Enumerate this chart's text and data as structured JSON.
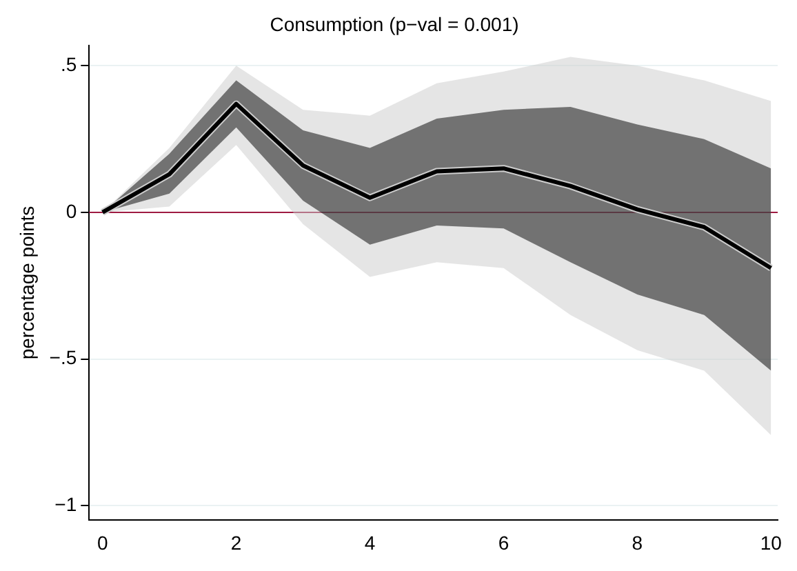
{
  "chart_data": {
    "type": "line",
    "title": "Consumption (p−val = 0.001)",
    "ylabel": "percentage points",
    "x": [
      0,
      1,
      2,
      3,
      4,
      5,
      6,
      7,
      8,
      9,
      10
    ],
    "series": [
      {
        "color": "#cccccc",
        "values": [
          0,
          0.13,
          0.37,
          0.16,
          0.05,
          0.14,
          0.15,
          0.09,
          0.01,
          -0.05,
          -0.19
        ],
        "lower": [
          0,
          0.02,
          0.23,
          -0.04,
          -0.22,
          -0.17,
          -0.19,
          -0.35,
          -0.47,
          -0.54,
          -0.76
        ],
        "upper": [
          0,
          0.22,
          0.5,
          0.35,
          0.33,
          0.44,
          0.48,
          0.53,
          0.5,
          0.45,
          0.38
        ]
      },
      {
        "color": "#000000",
        "values": [
          0,
          0.13,
          0.37,
          0.16,
          0.05,
          0.14,
          0.15,
          0.09,
          0.01,
          -0.05,
          -0.19
        ],
        "lower": [
          0,
          0.064,
          0.29,
          0.04,
          -0.11,
          -0.045,
          -0.055,
          -0.17,
          -0.28,
          -0.35,
          -0.54
        ],
        "upper": [
          0,
          0.2,
          0.45,
          0.28,
          0.22,
          0.32,
          0.35,
          0.36,
          0.3,
          0.25,
          0.15
        ]
      }
    ],
    "xlim": [
      -0.2,
      10.1
    ],
    "xticks": [
      0,
      2,
      4,
      6,
      8,
      10
    ],
    "ylim": [
      -1.05,
      0.57
    ],
    "yticks": [
      {
        "value": -1,
        "label": "−1"
      },
      {
        "value": -0.5,
        "label": "−.5"
      },
      0,
      {
        "value": 0.5,
        "label": ".5"
      }
    ],
    "ref_lines": [
      {
        "axis": "y",
        "value": 0,
        "color": "#9e1b42"
      }
    ],
    "grid": "y",
    "legend": false,
    "marker": "none",
    "line_style": "solid"
  }
}
